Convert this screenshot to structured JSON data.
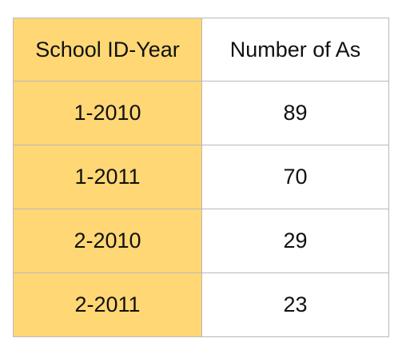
{
  "chart_data": {
    "type": "table",
    "columns": [
      "School ID-Year",
      "Number of As"
    ],
    "rows": [
      {
        "key": "1-2010",
        "value": 89
      },
      {
        "key": "1-2011",
        "value": 70
      },
      {
        "key": "2-2010",
        "value": 29
      },
      {
        "key": "2-2011",
        "value": 23
      }
    ]
  },
  "colors": {
    "key_column_fill": "#ffd775",
    "value_column_fill": "#ffffff",
    "border": "#b9b9b9"
  }
}
